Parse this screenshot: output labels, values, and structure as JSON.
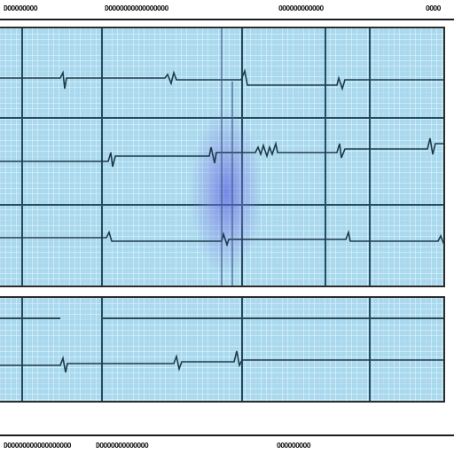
{
  "header": {
    "labels": [
      "DOOOOOOOO",
      "DOOOOOOOOOOOOOOOO",
      "OOOOOOOOOOOO",
      "OOOO"
    ]
  },
  "footer": {
    "labels": [
      "DOOOOOOOOOOOOOOOOO",
      "DOOOOOOOOOOOOO",
      "OOOOOOOOO"
    ]
  },
  "colors": {
    "grid_background": "#a8d9ee",
    "grid_lines": "#274a5c",
    "trace": "#1e3a48",
    "highlight": "#5b5fe0"
  }
}
